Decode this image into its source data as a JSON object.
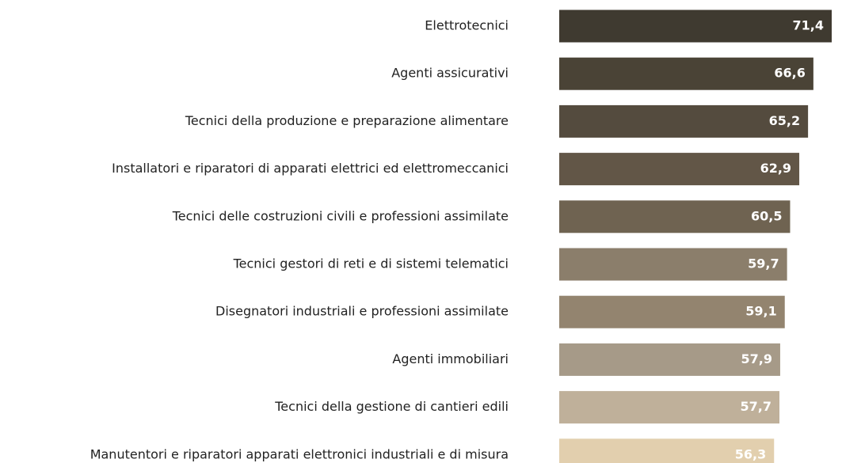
{
  "chart_data": {
    "type": "hbar",
    "categories": [
      "Elettrotecnici",
      "Agenti assicurativi",
      "Tecnici della produzione e preparazione alimentare",
      "Installatori e riparatori di apparati elettrici ed elettromeccanici",
      "Tecnici delle costruzioni civili e professioni assimilate",
      "Tecnici gestori di reti e di sistemi telematici",
      "Disegnatori industriali e professioni assimilate",
      "Agenti immobiliari",
      "Tecnici della gestione di cantieri edili",
      "Manutentori e riparatori apparati elettronici industriali e di misura"
    ],
    "values": [
      71.4,
      66.6,
      65.2,
      62.9,
      60.5,
      59.7,
      59.1,
      57.9,
      57.7,
      56.3
    ],
    "value_labels": [
      "71,4",
      "66,6",
      "65,2",
      "62,9",
      "60,5",
      "59,7",
      "59,1",
      "57,9",
      "57,7",
      "56,3"
    ],
    "colors": [
      "#3f3a30",
      "#4a4336",
      "#544b3e",
      "#625647",
      "#6f6351",
      "#8b7e6b",
      "#93846f",
      "#a69a88",
      "#bfb09a",
      "#e2cfae"
    ]
  }
}
